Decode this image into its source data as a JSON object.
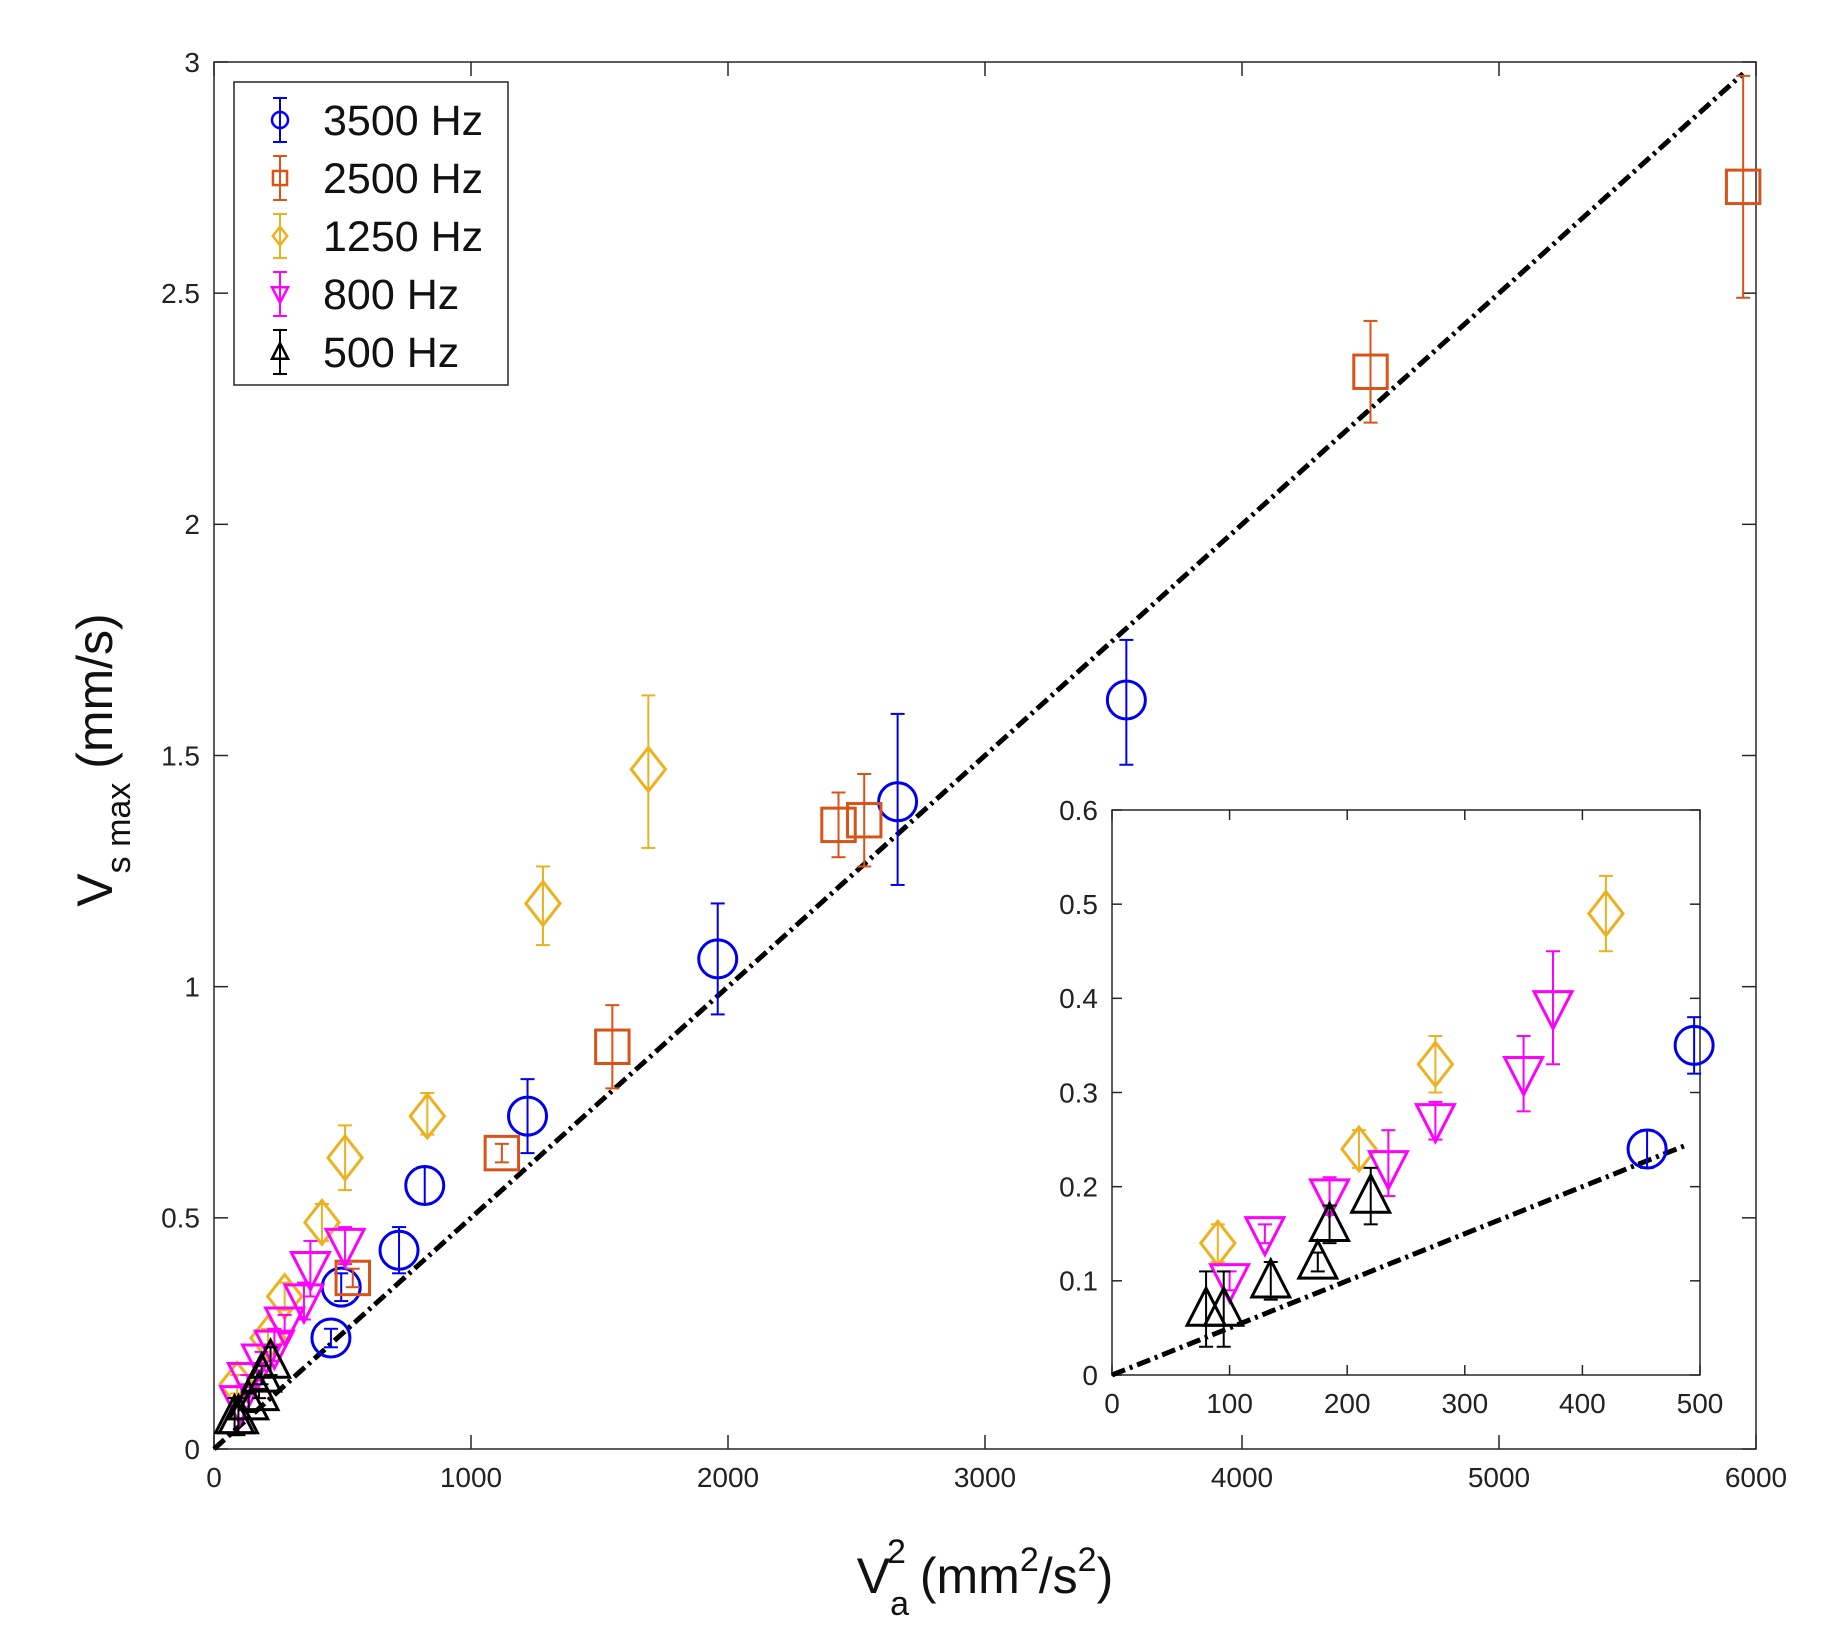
{
  "chart_data": {
    "type": "scatter",
    "main": {
      "xlabel": {
        "main": "V",
        "sub": "a",
        "sup": "2",
        "unit_pre": " (mm",
        "unit_sup1": "2",
        "unit_mid": "/s",
        "unit_sup2": "2",
        "unit_post": ")"
      },
      "ylabel": {
        "main": "V",
        "sub": "s max",
        "unit": " (mm/s)"
      },
      "xlim": [
        0,
        6000
      ],
      "ylim": [
        0,
        3
      ],
      "xticks": [
        0,
        1000,
        2000,
        3000,
        4000,
        5000,
        6000
      ],
      "yticks": [
        0,
        0.5,
        1,
        1.5,
        2,
        2.5,
        3
      ],
      "xtick_labels": [
        "0",
        "1000",
        "2000",
        "3000",
        "4000",
        "5000",
        "6000"
      ],
      "ytick_labels": [
        "0",
        "0.5",
        "1",
        "1.5",
        "2",
        "2.5",
        "3"
      ],
      "fit_line": {
        "slope": 0.0005,
        "intercept": 0,
        "x_range": [
          0,
          5950
        ],
        "color": "#000000",
        "style": "dash-dot"
      },
      "series": [
        {
          "name": "3500 Hz",
          "marker": "circle",
          "color": "#0000ee",
          "points": [
            {
              "x": 455,
              "y": 0.24,
              "lo": 0.22,
              "hi": 0.26
            },
            {
              "x": 495,
              "y": 0.35,
              "lo": 0.32,
              "hi": 0.38
            },
            {
              "x": 720,
              "y": 0.43,
              "lo": 0.38,
              "hi": 0.48
            },
            {
              "x": 820,
              "y": 0.57,
              "lo": 0.53,
              "hi": 0.61
            },
            {
              "x": 1220,
              "y": 0.72,
              "lo": 0.64,
              "hi": 0.8
            },
            {
              "x": 1960,
              "y": 1.06,
              "lo": 0.94,
              "hi": 1.18
            },
            {
              "x": 2660,
              "y": 1.4,
              "lo": 1.22,
              "hi": 1.59
            },
            {
              "x": 3550,
              "y": 1.62,
              "lo": 1.48,
              "hi": 1.75
            }
          ]
        },
        {
          "name": "2500 Hz",
          "marker": "square",
          "color": "#d95319",
          "points": [
            {
              "x": 540,
              "y": 0.37,
              "lo": 0.35,
              "hi": 0.39
            },
            {
              "x": 1120,
              "y": 0.64,
              "lo": 0.62,
              "hi": 0.66
            },
            {
              "x": 1550,
              "y": 0.87,
              "lo": 0.78,
              "hi": 0.96
            },
            {
              "x": 2430,
              "y": 1.35,
              "lo": 1.28,
              "hi": 1.42
            },
            {
              "x": 2530,
              "y": 1.36,
              "lo": 1.26,
              "hi": 1.46
            },
            {
              "x": 4500,
              "y": 2.33,
              "lo": 2.22,
              "hi": 2.44
            },
            {
              "x": 5950,
              "y": 2.73,
              "lo": 2.49,
              "hi": 2.97
            }
          ]
        },
        {
          "name": "1250 Hz",
          "marker": "diamond",
          "color": "#edb120",
          "points": [
            {
              "x": 90,
              "y": 0.14,
              "lo": 0.12,
              "hi": 0.16
            },
            {
              "x": 210,
              "y": 0.24,
              "lo": 0.22,
              "hi": 0.26
            },
            {
              "x": 275,
              "y": 0.33,
              "lo": 0.3,
              "hi": 0.36
            },
            {
              "x": 420,
              "y": 0.49,
              "lo": 0.45,
              "hi": 0.53
            },
            {
              "x": 510,
              "y": 0.63,
              "lo": 0.56,
              "hi": 0.7
            },
            {
              "x": 830,
              "y": 0.72,
              "lo": 0.68,
              "hi": 0.77
            },
            {
              "x": 1280,
              "y": 1.18,
              "lo": 1.09,
              "hi": 1.26
            },
            {
              "x": 1690,
              "y": 1.47,
              "lo": 1.3,
              "hi": 1.63
            }
          ]
        },
        {
          "name": "800 Hz",
          "marker": "triangle-down",
          "color": "#ff00ff",
          "points": [
            {
              "x": 100,
              "y": 0.1,
              "lo": 0.09,
              "hi": 0.11
            },
            {
              "x": 130,
              "y": 0.15,
              "lo": 0.14,
              "hi": 0.16
            },
            {
              "x": 185,
              "y": 0.19,
              "lo": 0.17,
              "hi": 0.21
            },
            {
              "x": 235,
              "y": 0.22,
              "lo": 0.19,
              "hi": 0.26
            },
            {
              "x": 275,
              "y": 0.27,
              "lo": 0.25,
              "hi": 0.29
            },
            {
              "x": 350,
              "y": 0.32,
              "lo": 0.28,
              "hi": 0.36
            },
            {
              "x": 375,
              "y": 0.39,
              "lo": 0.33,
              "hi": 0.45
            },
            {
              "x": 510,
              "y": 0.44,
              "lo": 0.4,
              "hi": 0.48
            }
          ]
        },
        {
          "name": "500 Hz",
          "marker": "triangle-up",
          "color": "#000000",
          "points": [
            {
              "x": 80,
              "y": 0.07,
              "lo": 0.03,
              "hi": 0.11
            },
            {
              "x": 95,
              "y": 0.07,
              "lo": 0.03,
              "hi": 0.11
            },
            {
              "x": 135,
              "y": 0.1,
              "lo": 0.08,
              "hi": 0.12
            },
            {
              "x": 175,
              "y": 0.12,
              "lo": 0.11,
              "hi": 0.13
            },
            {
              "x": 185,
              "y": 0.16,
              "lo": 0.14,
              "hi": 0.18
            },
            {
              "x": 220,
              "y": 0.19,
              "lo": 0.16,
              "hi": 0.22
            }
          ]
        }
      ],
      "legend": {
        "position": "top-left"
      }
    },
    "inset": {
      "xlim": [
        0,
        500
      ],
      "ylim": [
        0,
        0.6
      ],
      "xticks": [
        0,
        100,
        200,
        300,
        400,
        500
      ],
      "yticks": [
        0,
        0.1,
        0.2,
        0.3,
        0.4,
        0.5,
        0.6
      ],
      "xtick_labels": [
        "0",
        "100",
        "200",
        "300",
        "400",
        "500"
      ],
      "ytick_labels": [
        "0",
        "0.1",
        "0.2",
        "0.3",
        "0.4",
        "0.5",
        "0.6"
      ],
      "position": "bottom-right",
      "x_max_data": 500
    }
  }
}
